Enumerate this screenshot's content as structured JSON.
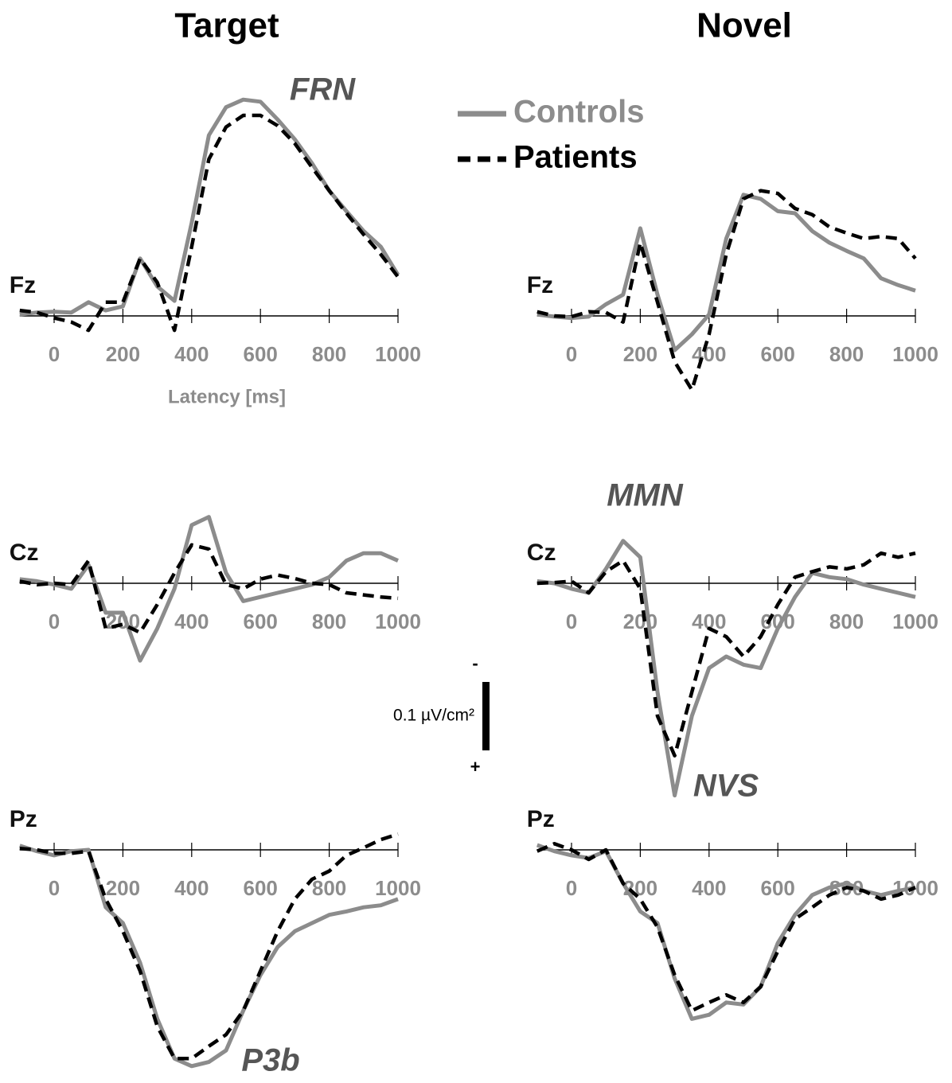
{
  "column_titles": [
    "Target",
    "Novel"
  ],
  "scale_bar": {
    "value": 0.1,
    "label": "0.1 µV/cm²",
    "top_sign": "-",
    "bottom_sign": "+"
  },
  "chart_data": [
    {
      "type": "line",
      "channel": "Fz",
      "x_label": "Latency [ms]",
      "annotations": [
        "FRN"
      ],
      "xlim": [
        -100,
        1000
      ],
      "ylim": [
        -0.35,
        0.05
      ],
      "y_inverted": true,
      "xticks": [
        0,
        200,
        400,
        600,
        800,
        1000
      ],
      "x": [
        -100,
        -50,
        0,
        50,
        100,
        150,
        200,
        250,
        300,
        350,
        400,
        450,
        500,
        550,
        600,
        650,
        700,
        750,
        800,
        850,
        900,
        950,
        1000
      ],
      "series": [
        {
          "name": "Controls",
          "color": "#8c8c8c",
          "dashed": false,
          "values": [
            -0.002,
            -0.005,
            -0.006,
            -0.005,
            -0.02,
            -0.008,
            -0.014,
            -0.084,
            -0.043,
            -0.022,
            -0.136,
            -0.264,
            -0.305,
            -0.316,
            -0.313,
            -0.287,
            -0.258,
            -0.223,
            -0.183,
            -0.153,
            -0.124,
            -0.101,
            -0.06
          ]
        },
        {
          "name": "Patients",
          "color": "#000000",
          "dashed": true,
          "values": [
            -0.008,
            -0.005,
            0.003,
            0.009,
            0.021,
            -0.02,
            -0.02,
            -0.084,
            -0.049,
            0.021,
            -0.101,
            -0.229,
            -0.276,
            -0.293,
            -0.293,
            -0.278,
            -0.252,
            -0.217,
            -0.183,
            -0.15,
            -0.119,
            -0.09,
            -0.057
          ]
        }
      ]
    },
    {
      "type": "line",
      "channel": "Fz",
      "xlim": [
        -100,
        1000
      ],
      "ylim": [
        -0.35,
        0.05
      ],
      "y_inverted": true,
      "xticks": [
        0,
        200,
        400,
        600,
        800,
        1000
      ],
      "x": [
        -100,
        -50,
        0,
        50,
        100,
        150,
        200,
        250,
        300,
        350,
        400,
        450,
        500,
        550,
        600,
        650,
        700,
        750,
        800,
        850,
        900,
        950,
        1000
      ],
      "series": [
        {
          "name": "Controls",
          "color": "#8c8c8c",
          "dashed": false,
          "values": [
            -0.002,
            0.001,
            0.003,
            0.001,
            -0.017,
            -0.031,
            -0.128,
            -0.031,
            0.05,
            0.027,
            -0.002,
            -0.113,
            -0.177,
            -0.171,
            -0.153,
            -0.15,
            -0.124,
            -0.107,
            -0.095,
            -0.084,
            -0.055,
            -0.045,
            -0.037
          ]
        },
        {
          "name": "Patients",
          "color": "#000000",
          "dashed": true,
          "values": [
            -0.006,
            0,
            0.001,
            -0.006,
            -0.005,
            0.009,
            -0.107,
            -0.02,
            0.067,
            0.108,
            0.027,
            -0.09,
            -0.171,
            -0.183,
            -0.179,
            -0.157,
            -0.148,
            -0.13,
            -0.121,
            -0.113,
            -0.116,
            -0.113,
            -0.084
          ]
        }
      ]
    },
    {
      "type": "line",
      "channel": "Cz",
      "xlim": [
        -100,
        1000
      ],
      "ylim": [
        -0.15,
        0.35
      ],
      "y_inverted": true,
      "xticks": [
        0,
        200,
        400,
        600,
        800,
        1000
      ],
      "x": [
        -100,
        -50,
        0,
        50,
        100,
        150,
        200,
        250,
        300,
        350,
        400,
        450,
        500,
        550,
        600,
        650,
        700,
        750,
        800,
        850,
        900,
        950,
        1000
      ],
      "series": [
        {
          "name": "Controls",
          "color": "#8c8c8c",
          "dashed": false,
          "values": [
            -0.006,
            -0.003,
            0.002,
            0.008,
            -0.027,
            0.043,
            0.043,
            0.113,
            0.066,
            0.008,
            -0.085,
            -0.097,
            -0.015,
            0.026,
            0.02,
            0.014,
            0.008,
            0.002,
            -0.009,
            -0.033,
            -0.044,
            -0.044,
            -0.033
          ]
        },
        {
          "name": "Patients",
          "color": "#000000",
          "dashed": true,
          "values": [
            -0.003,
            0.002,
            0,
            0.002,
            -0.033,
            0.066,
            0.06,
            0.072,
            0.031,
            -0.015,
            -0.056,
            -0.05,
            0.002,
            0.008,
            -0.006,
            -0.012,
            -0.007,
            0,
            0.002,
            0.014,
            0.017,
            0.02,
            0.022
          ]
        }
      ]
    },
    {
      "type": "line",
      "channel": "Cz",
      "annotations": [
        "MMN",
        "NVS"
      ],
      "xlim": [
        -100,
        1000
      ],
      "ylim": [
        -0.15,
        0.35
      ],
      "y_inverted": true,
      "xticks": [
        0,
        200,
        400,
        600,
        800,
        1000
      ],
      "x": [
        -100,
        -50,
        0,
        50,
        100,
        150,
        200,
        250,
        300,
        350,
        400,
        450,
        500,
        550,
        600,
        650,
        700,
        750,
        800,
        850,
        900,
        950,
        1000
      ],
      "series": [
        {
          "name": "Controls",
          "color": "#8c8c8c",
          "dashed": false,
          "values": [
            -0.003,
            0,
            0.008,
            0.014,
            -0.021,
            -0.062,
            -0.038,
            0.159,
            0.31,
            0.194,
            0.124,
            0.107,
            0.119,
            0.124,
            0.066,
            0.02,
            -0.015,
            -0.009,
            -0.006,
            0.002,
            0.008,
            0.014,
            0.02
          ]
        },
        {
          "name": "Patients",
          "color": "#000000",
          "dashed": true,
          "values": [
            0,
            -0.001,
            -0.003,
            0.014,
            -0.017,
            -0.033,
            0.008,
            0.194,
            0.252,
            0.159,
            0.066,
            0.078,
            0.107,
            0.078,
            0.031,
            -0.009,
            -0.017,
            -0.024,
            -0.021,
            -0.027,
            -0.044,
            -0.038,
            -0.044
          ]
        }
      ]
    },
    {
      "type": "line",
      "channel": "Pz",
      "annotations": [
        "P3b"
      ],
      "xlim": [
        -100,
        1000
      ],
      "ylim": [
        -0.05,
        0.35
      ],
      "y_inverted": true,
      "xticks": [
        0,
        200,
        400,
        600,
        800,
        1000
      ],
      "x": [
        -100,
        -50,
        0,
        50,
        100,
        150,
        200,
        250,
        300,
        350,
        400,
        450,
        500,
        550,
        600,
        650,
        700,
        750,
        800,
        850,
        900,
        950,
        1000
      ],
      "series": [
        {
          "name": "Controls",
          "color": "#8c8c8c",
          "dashed": false,
          "values": [
            -0.006,
            0.002,
            0.008,
            0.002,
            0,
            0.084,
            0.107,
            0.165,
            0.247,
            0.305,
            0.316,
            0.31,
            0.293,
            0.235,
            0.183,
            0.142,
            0.119,
            0.107,
            0.095,
            0.09,
            0.084,
            0.081,
            0.072
          ]
        },
        {
          "name": "Patients",
          "color": "#000000",
          "dashed": true,
          "values": [
            -0.002,
            0,
            0.005,
            0.005,
            0.002,
            0.072,
            0.119,
            0.177,
            0.258,
            0.305,
            0.305,
            0.287,
            0.27,
            0.235,
            0.177,
            0.119,
            0.072,
            0.043,
            0.031,
            0.008,
            -0.003,
            -0.015,
            -0.023
          ]
        }
      ]
    },
    {
      "type": "line",
      "channel": "Pz",
      "xlim": [
        -100,
        1000
      ],
      "ylim": [
        -0.05,
        0.35
      ],
      "y_inverted": true,
      "xticks": [
        0,
        200,
        400,
        600,
        800,
        1000
      ],
      "x": [
        -100,
        -50,
        0,
        50,
        100,
        150,
        200,
        250,
        300,
        350,
        400,
        450,
        500,
        550,
        600,
        650,
        700,
        750,
        800,
        850,
        900,
        950,
        1000
      ],
      "series": [
        {
          "name": "Controls",
          "color": "#8c8c8c",
          "dashed": false,
          "values": [
            -0.007,
            0.002,
            0.008,
            0.012,
            0.002,
            0.049,
            0.09,
            0.107,
            0.188,
            0.247,
            0.241,
            0.223,
            0.226,
            0.2,
            0.136,
            0.095,
            0.066,
            0.055,
            0.049,
            0.06,
            0.066,
            0.06,
            0.055
          ]
        },
        {
          "name": "Patients",
          "color": "#000000",
          "dashed": true,
          "values": [
            0.002,
            -0.009,
            0,
            0.014,
            0,
            0.049,
            0.072,
            0.113,
            0.183,
            0.235,
            0.223,
            0.212,
            0.223,
            0.2,
            0.148,
            0.101,
            0.084,
            0.066,
            0.055,
            0.06,
            0.072,
            0.066,
            0.055
          ]
        }
      ]
    }
  ]
}
